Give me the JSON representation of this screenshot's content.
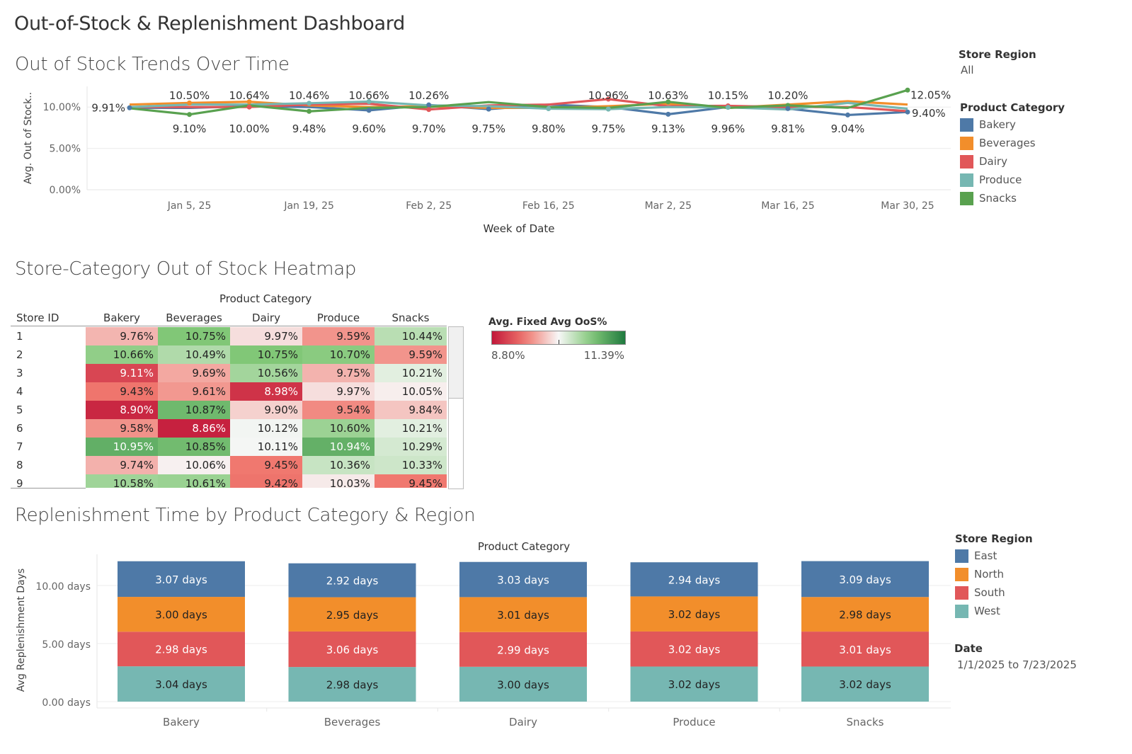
{
  "dashboard_title": "Out-of-Stock & Replenishment Dashboard",
  "filters": {
    "store_region_label": "Store Region",
    "store_region_value": "All",
    "date_label": "Date",
    "date_value": "1/1/2025 to 7/23/2025"
  },
  "legend_category": {
    "title": "Product Category",
    "items": [
      {
        "label": "Bakery",
        "color": "#4e79a7"
      },
      {
        "label": "Beverages",
        "color": "#f28e2b"
      },
      {
        "label": "Dairy",
        "color": "#e15759"
      },
      {
        "label": "Produce",
        "color": "#76b7b2"
      },
      {
        "label": "Snacks",
        "color": "#59a14f"
      }
    ]
  },
  "legend_region": {
    "title": "Store Region",
    "items": [
      {
        "label": "East",
        "color": "#4e79a7"
      },
      {
        "label": "North",
        "color": "#f28e2b"
      },
      {
        "label": "South",
        "color": "#e15759"
      },
      {
        "label": "West",
        "color": "#76b7b2"
      }
    ]
  },
  "heatmap_legend": {
    "title": "Avg. Fixed Avg OoS%",
    "min_label": "8.80%",
    "max_label": "11.39%",
    "min_color": "#c2183a",
    "mid_color": "#f7f7f7",
    "max_color": "#1f7a3f"
  },
  "chart_data": [
    {
      "type": "line",
      "title": "Out of Stock Trends Over Time",
      "xlabel": "Week of Date",
      "ylabel": "Avg. Out of Stock..",
      "x": [
        "2024-12-29",
        "2025-01-05",
        "2025-01-12",
        "2025-01-19",
        "2025-01-26",
        "2025-02-02",
        "2025-02-09",
        "2025-02-16",
        "2025-02-23",
        "2025-03-02",
        "2025-03-09",
        "2025-03-16",
        "2025-03-23",
        "2025-03-30"
      ],
      "x_tick_labels": [
        "Jan 5, 25",
        "Jan 19, 25",
        "Feb 2, 25",
        "Feb 16, 25",
        "Mar 2, 25",
        "Mar 16, 25",
        "Mar 30, 25"
      ],
      "y_tick_labels": [
        "10.00%",
        "5.00%",
        "0.00%"
      ],
      "ylim": [
        0,
        12.5
      ],
      "grid": true,
      "series": [
        {
          "name": "Bakery",
          "color": "#4e79a7",
          "values": [
            9.91,
            9.9,
            10.1,
            10.0,
            9.6,
            10.26,
            9.75,
            10.3,
            10.0,
            9.13,
            10.0,
            9.81,
            9.04,
            9.4
          ]
        },
        {
          "name": "Beverages",
          "color": "#f28e2b",
          "values": [
            10.3,
            10.5,
            10.64,
            10.2,
            10.0,
            10.1,
            9.9,
            9.9,
            10.1,
            10.4,
            9.9,
            10.3,
            10.7,
            10.3
          ]
        },
        {
          "name": "Dairy",
          "color": "#e15759",
          "values": [
            10.0,
            10.0,
            10.0,
            10.3,
            10.4,
            9.7,
            10.2,
            10.3,
            10.96,
            10.1,
            10.15,
            10.0,
            10.0,
            9.5
          ]
        },
        {
          "name": "Produce",
          "color": "#76b7b2",
          "values": [
            10.0,
            10.3,
            10.3,
            10.46,
            10.66,
            10.2,
            10.1,
            9.8,
            9.75,
            10.0,
            9.96,
            9.7,
            10.5,
            9.8
          ]
        },
        {
          "name": "Snacks",
          "color": "#59a14f",
          "values": [
            9.85,
            9.1,
            10.2,
            9.48,
            9.9,
            10.0,
            10.6,
            10.0,
            9.9,
            10.63,
            9.9,
            10.2,
            9.9,
            12.05
          ]
        }
      ],
      "data_labels": [
        {
          "series": 0,
          "index": 0,
          "text": "9.91%",
          "pos": "left"
        },
        {
          "series": 4,
          "index": 1,
          "text": "9.10%",
          "pos": "below"
        },
        {
          "series": 1,
          "index": 1,
          "text": "10.50%",
          "pos": "above"
        },
        {
          "series": 1,
          "index": 2,
          "text": "10.64%",
          "pos": "above"
        },
        {
          "series": 2,
          "index": 2,
          "text": "10.00%",
          "pos": "below"
        },
        {
          "series": 3,
          "index": 3,
          "text": "10.46%",
          "pos": "above"
        },
        {
          "series": 4,
          "index": 3,
          "text": "9.48%",
          "pos": "below"
        },
        {
          "series": 3,
          "index": 4,
          "text": "10.66%",
          "pos": "above"
        },
        {
          "series": 0,
          "index": 4,
          "text": "9.60%",
          "pos": "below"
        },
        {
          "series": 0,
          "index": 5,
          "text": "10.26%",
          "pos": "above"
        },
        {
          "series": 2,
          "index": 5,
          "text": "9.70%",
          "pos": "below"
        },
        {
          "series": 0,
          "index": 6,
          "text": "9.75%",
          "pos": "below"
        },
        {
          "series": 3,
          "index": 7,
          "text": "9.80%",
          "pos": "below"
        },
        {
          "series": 2,
          "index": 8,
          "text": "10.96%",
          "pos": "above"
        },
        {
          "series": 3,
          "index": 8,
          "text": "9.75%",
          "pos": "below"
        },
        {
          "series": 4,
          "index": 9,
          "text": "10.63%",
          "pos": "above"
        },
        {
          "series": 0,
          "index": 9,
          "text": "9.13%",
          "pos": "below"
        },
        {
          "series": 2,
          "index": 10,
          "text": "10.15%",
          "pos": "above"
        },
        {
          "series": 3,
          "index": 10,
          "text": "9.96%",
          "pos": "below"
        },
        {
          "series": 4,
          "index": 11,
          "text": "10.20%",
          "pos": "above"
        },
        {
          "series": 0,
          "index": 11,
          "text": "9.81%",
          "pos": "below"
        },
        {
          "series": 0,
          "index": 12,
          "text": "9.04%",
          "pos": "below"
        },
        {
          "series": 4,
          "index": 13,
          "text": "12.05%",
          "pos": "right"
        },
        {
          "series": 0,
          "index": 13,
          "text": "9.40%",
          "pos": "right-low"
        }
      ]
    },
    {
      "type": "heatmap",
      "title": "Store-Category Out of Stock Heatmap",
      "column_header": "Product Category",
      "row_header": "Store ID",
      "columns": [
        "Bakery",
        "Beverages",
        "Dairy",
        "Produce",
        "Snacks"
      ],
      "rows": [
        "1",
        "2",
        "3",
        "4",
        "5",
        "6",
        "7",
        "8",
        "9"
      ],
      "values": [
        [
          9.76,
          10.75,
          9.97,
          9.59,
          10.44
        ],
        [
          10.66,
          10.49,
          10.75,
          10.7,
          9.59
        ],
        [
          9.11,
          9.69,
          10.56,
          9.75,
          10.21
        ],
        [
          9.43,
          9.61,
          8.98,
          9.97,
          10.05
        ],
        [
          8.9,
          10.87,
          9.9,
          9.54,
          9.84
        ],
        [
          9.58,
          8.86,
          10.12,
          10.6,
          10.21
        ],
        [
          10.95,
          10.85,
          10.11,
          10.94,
          10.29
        ],
        [
          9.74,
          10.06,
          9.45,
          10.36,
          10.33
        ],
        [
          10.58,
          10.61,
          9.42,
          10.03,
          9.45
        ]
      ],
      "labels": [
        [
          "9.76%",
          "10.75%",
          "9.97%",
          "9.59%",
          "10.44%"
        ],
        [
          "10.66%",
          "10.49%",
          "10.75%",
          "10.70%",
          "9.59%"
        ],
        [
          "9.11%",
          "9.69%",
          "10.56%",
          "9.75%",
          "10.21%"
        ],
        [
          "9.43%",
          "9.61%",
          "8.98%",
          "9.97%",
          "10.05%"
        ],
        [
          "8.90%",
          "10.87%",
          "9.90%",
          "9.54%",
          "9.84%"
        ],
        [
          "9.58%",
          "8.86%",
          "10.12%",
          "10.60%",
          "10.21%"
        ],
        [
          "10.95%",
          "10.85%",
          "10.11%",
          "10.94%",
          "10.29%"
        ],
        [
          "9.74%",
          "10.06%",
          "9.45%",
          "10.36%",
          "10.33%"
        ],
        [
          "10.58%",
          "10.61%",
          "9.42%",
          "10.03%",
          "9.45%"
        ]
      ],
      "color_range": [
        8.8,
        11.39
      ]
    },
    {
      "type": "bar",
      "stacked": true,
      "title": "Replenishment Time by Product Category & Region",
      "column_header": "Product Category",
      "ylabel": "Avg Replenishment Days",
      "categories": [
        "Bakery",
        "Beverages",
        "Dairy",
        "Produce",
        "Snacks"
      ],
      "y_tick_labels": [
        "10.00 days",
        "5.00 days",
        "0.00 days"
      ],
      "ylim": [
        0,
        12.5
      ],
      "series": [
        {
          "name": "West",
          "color": "#76b7b2",
          "values": [
            3.04,
            2.98,
            3.0,
            3.02,
            3.02
          ],
          "labels": [
            "3.04 days",
            "2.98 days",
            "3.00 days",
            "3.02 days",
            "3.02 days"
          ]
        },
        {
          "name": "South",
          "color": "#e15759",
          "values": [
            2.98,
            3.06,
            2.99,
            3.02,
            3.01
          ],
          "labels": [
            "2.98 days",
            "3.06 days",
            "2.99 days",
            "3.02 days",
            "3.01 days"
          ]
        },
        {
          "name": "North",
          "color": "#f28e2b",
          "values": [
            3.0,
            2.95,
            3.01,
            3.02,
            2.98
          ],
          "labels": [
            "3.00 days",
            "2.95 days",
            "3.01 days",
            "3.02 days",
            "2.98 days"
          ]
        },
        {
          "name": "East",
          "color": "#4e79a7",
          "values": [
            3.07,
            2.92,
            3.03,
            2.94,
            3.09
          ],
          "labels": [
            "3.07 days",
            "2.92 days",
            "3.03 days",
            "2.94 days",
            "3.09 days"
          ]
        }
      ]
    }
  ]
}
